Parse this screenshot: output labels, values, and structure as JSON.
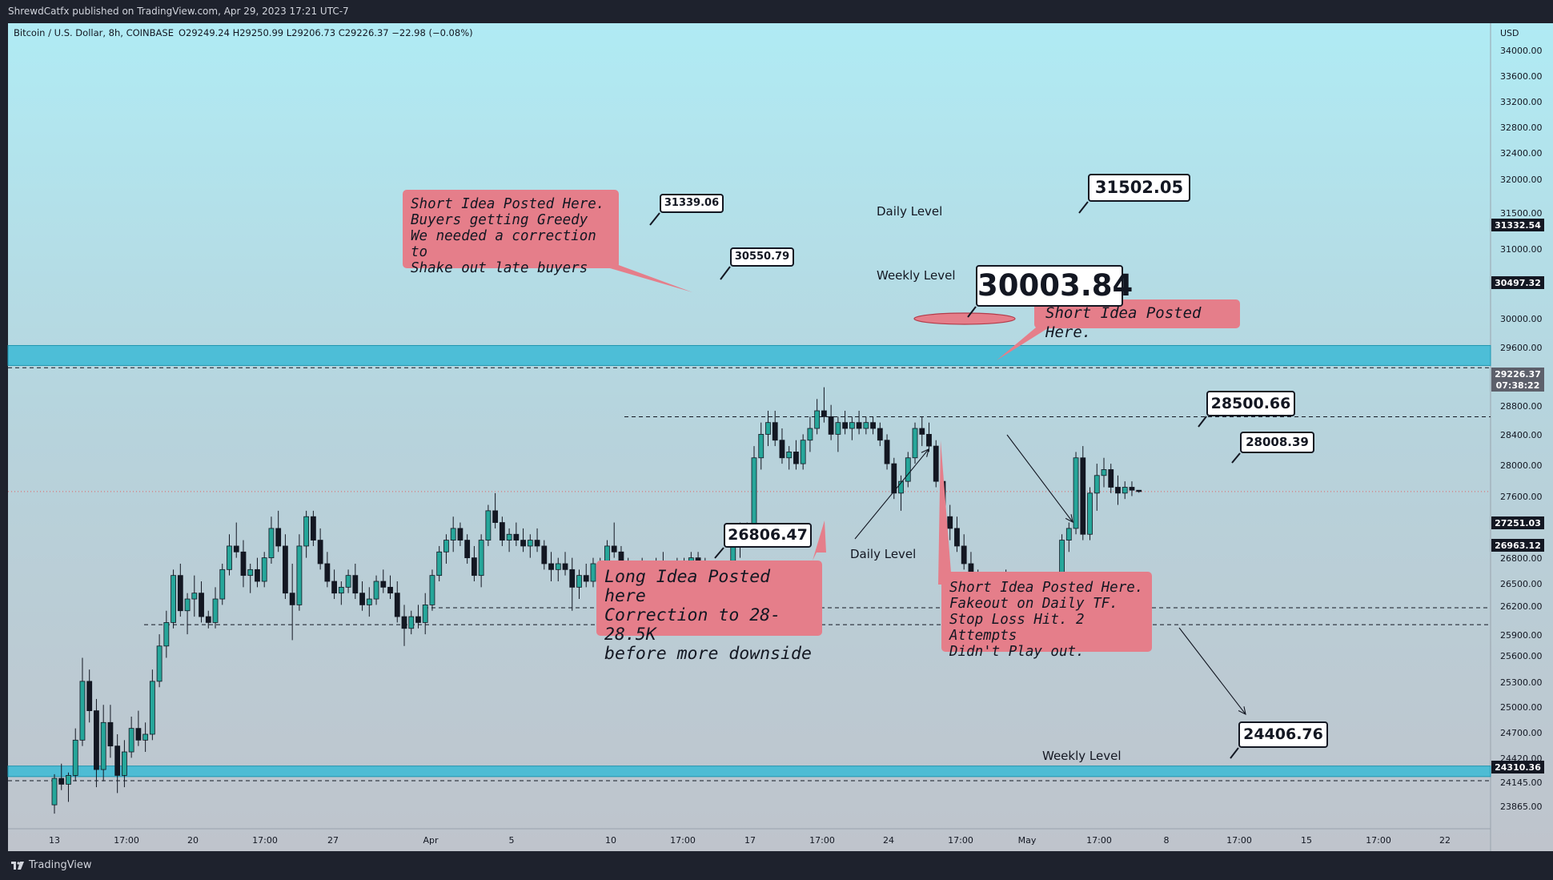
{
  "header": {
    "publish_info": "ShrewdCatfx published on TradingView.com, Apr 29, 2023 17:21 UTC-7"
  },
  "footer": {
    "brand": "TradingView"
  },
  "chart_data": {
    "type": "candlestick",
    "title": "Bitcoin / U.S. Dollar, 8h, COINBASE",
    "ohlc_legend": "O29249.24 H29250.99 L29206.73 C29226.37 −22.98 (−0.08%)",
    "currency": "USD",
    "ylim": [
      23600,
      34350
    ],
    "y_ticks": [
      "34000.00",
      "33600.00",
      "33200.00",
      "32800.00",
      "32400.00",
      "32000.00",
      "31500.00",
      "31000.00",
      "30000.00",
      "29600.00",
      "28800.00",
      "28400.00",
      "28000.00",
      "27600.00",
      "27000.00",
      "26800.00",
      "26500.00",
      "26200.00",
      "25900.00",
      "25600.00",
      "25300.00",
      "25000.00",
      "24700.00",
      "24420.00",
      "24145.00",
      "23865.00"
    ],
    "x_ticks": [
      "13",
      "17:00",
      "20",
      "17:00",
      "27",
      "Apr",
      "5",
      "10",
      "17:00",
      "17",
      "17:00",
      "24",
      "17:00",
      "May",
      "17:00",
      "8",
      "17:00",
      "15",
      "17:00",
      "22"
    ],
    "price_tags": [
      {
        "value": "31332.54",
        "style": "dark"
      },
      {
        "value": "30497.32",
        "style": "dark"
      },
      {
        "value": "29226.37",
        "style": "current"
      },
      {
        "value": "07:38:22",
        "style": "current-sub"
      },
      {
        "value": "27251.03",
        "style": "dark"
      },
      {
        "value": "26963.12",
        "style": "dark"
      },
      {
        "value": "24310.36",
        "style": "dark"
      }
    ],
    "zones": [
      {
        "label": "Daily Level",
        "from": 31370,
        "to": 31710
      },
      {
        "label": "Weekly Level",
        "from": 24380,
        "to": 24560
      }
    ],
    "levels": [
      {
        "label": "",
        "value": 31332.54
      },
      {
        "label": "Weekly Level",
        "value": 30497.32
      },
      {
        "label": "",
        "value": 27251.03
      },
      {
        "label": "Daily Level",
        "value": 26963.12
      },
      {
        "label": "",
        "value": 24310.36
      }
    ],
    "current_price": 29226.37,
    "callouts": [
      {
        "text": "31339.06"
      },
      {
        "text": "30550.79"
      },
      {
        "text": "31502.05"
      },
      {
        "text": "30003.84"
      },
      {
        "text": "28500.66"
      },
      {
        "text": "28008.39"
      },
      {
        "text": "26806.47"
      },
      {
        "text": "24406.76"
      }
    ],
    "notes": [
      {
        "text": "Short Idea Posted Here.\nBuyers getting Greedy\nWe needed a correction to\nShake out late buyers"
      },
      {
        "text": "Short Idea Posted Here."
      },
      {
        "text": "Long Idea Posted here\nCorrection to 28-28.5K\nbefore more downside"
      },
      {
        "text": "Short Idea Posted Here.\nFakeout on Daily TF.\nStop Loss Hit. 2 Attempts\nDidn't Play out."
      }
    ],
    "candles": [
      [
        23900,
        24420,
        23750,
        24350
      ],
      [
        24350,
        24600,
        24150,
        24250
      ],
      [
        24250,
        24450,
        23950,
        24400
      ],
      [
        24400,
        25200,
        24300,
        25000
      ],
      [
        25000,
        26400,
        24900,
        26000
      ],
      [
        26000,
        26200,
        25300,
        25500
      ],
      [
        25500,
        25700,
        24200,
        24500
      ],
      [
        24500,
        25600,
        24300,
        25300
      ],
      [
        25300,
        25600,
        24700,
        24900
      ],
      [
        24900,
        25100,
        24100,
        24400
      ],
      [
        24400,
        25000,
        24200,
        24800
      ],
      [
        24800,
        25400,
        24700,
        25200
      ],
      [
        25200,
        25500,
        24900,
        25000
      ],
      [
        25000,
        25300,
        24800,
        25100
      ],
      [
        25100,
        26200,
        25000,
        26000
      ],
      [
        26000,
        26800,
        25900,
        26600
      ],
      [
        26600,
        27200,
        26400,
        27000
      ],
      [
        27000,
        27900,
        26900,
        27800
      ],
      [
        27800,
        28000,
        27100,
        27200
      ],
      [
        27200,
        27500,
        26800,
        27400
      ],
      [
        27400,
        27800,
        27100,
        27500
      ],
      [
        27500,
        27700,
        27000,
        27100
      ],
      [
        27100,
        27200,
        26900,
        27000
      ],
      [
        27000,
        27600,
        26900,
        27400
      ],
      [
        27400,
        28000,
        27300,
        27900
      ],
      [
        27900,
        28500,
        27800,
        28300
      ],
      [
        28300,
        28700,
        28100,
        28200
      ],
      [
        28200,
        28400,
        27600,
        27800
      ],
      [
        27800,
        28000,
        27500,
        27900
      ],
      [
        27900,
        28100,
        27600,
        27700
      ],
      [
        27700,
        28200,
        27600,
        28100
      ],
      [
        28100,
        28800,
        28000,
        28600
      ],
      [
        28600,
        28900,
        28200,
        28300
      ],
      [
        28300,
        28500,
        27400,
        27500
      ],
      [
        27500,
        28000,
        26700,
        27300
      ],
      [
        27300,
        28500,
        27200,
        28300
      ],
      [
        28300,
        28900,
        28100,
        28800
      ],
      [
        28800,
        28900,
        28300,
        28400
      ],
      [
        28400,
        28600,
        27900,
        28000
      ],
      [
        28000,
        28200,
        27600,
        27700
      ],
      [
        27700,
        27900,
        27400,
        27500
      ],
      [
        27500,
        27700,
        27300,
        27600
      ],
      [
        27600,
        27900,
        27500,
        27800
      ],
      [
        27800,
        28000,
        27400,
        27500
      ],
      [
        27500,
        27700,
        27200,
        27300
      ],
      [
        27300,
        27600,
        27100,
        27400
      ],
      [
        27400,
        27800,
        27300,
        27700
      ],
      [
        27700,
        27900,
        27500,
        27600
      ],
      [
        27600,
        27800,
        27400,
        27500
      ],
      [
        27500,
        27700,
        27000,
        27100
      ],
      [
        27100,
        27300,
        26600,
        26900
      ],
      [
        26900,
        27200,
        26800,
        27100
      ],
      [
        27100,
        27300,
        26900,
        27000
      ],
      [
        27000,
        27500,
        26800,
        27300
      ],
      [
        27300,
        27900,
        27200,
        27800
      ],
      [
        27800,
        28300,
        27700,
        28200
      ],
      [
        28200,
        28500,
        28000,
        28400
      ],
      [
        28400,
        28800,
        28200,
        28600
      ],
      [
        28600,
        28700,
        28300,
        28400
      ],
      [
        28400,
        28500,
        28000,
        28100
      ],
      [
        28100,
        28300,
        27700,
        27800
      ],
      [
        27800,
        28500,
        27600,
        28400
      ],
      [
        28400,
        29000,
        28300,
        28900
      ],
      [
        28900,
        29200,
        28600,
        28700
      ],
      [
        28700,
        28800,
        28300,
        28400
      ],
      [
        28400,
        28600,
        28200,
        28500
      ],
      [
        28500,
        28700,
        28300,
        28400
      ],
      [
        28400,
        28600,
        28200,
        28300
      ],
      [
        28300,
        28500,
        28100,
        28400
      ],
      [
        28400,
        28600,
        28200,
        28300
      ],
      [
        28300,
        28400,
        27900,
        28000
      ],
      [
        28000,
        28200,
        27700,
        27900
      ],
      [
        27900,
        28100,
        27700,
        28000
      ],
      [
        28000,
        28200,
        27800,
        27900
      ],
      [
        27900,
        28100,
        27200,
        27600
      ],
      [
        27600,
        27900,
        27400,
        27800
      ],
      [
        27800,
        28000,
        27600,
        27700
      ],
      [
        27700,
        28100,
        27600,
        28000
      ],
      [
        28000,
        28100,
        27700,
        27800
      ],
      [
        27800,
        28400,
        27700,
        28300
      ],
      [
        28300,
        28700,
        28100,
        28200
      ],
      [
        28200,
        28300,
        27800,
        27900
      ],
      [
        27900,
        28100,
        27700,
        27800
      ],
      [
        27800,
        28000,
        27600,
        27900
      ],
      [
        27900,
        28100,
        27700,
        27800
      ],
      [
        27800,
        28000,
        27600,
        27700
      ],
      [
        27700,
        28100,
        27600,
        28000
      ],
      [
        28000,
        28200,
        27700,
        27800
      ],
      [
        27800,
        28000,
        27600,
        27900
      ],
      [
        27900,
        28100,
        27700,
        27800
      ],
      [
        27800,
        28100,
        27700,
        28000
      ],
      [
        28000,
        28200,
        27900,
        28100
      ],
      [
        28100,
        28200,
        27900,
        28000
      ],
      [
        28000,
        28100,
        27800,
        27900
      ],
      [
        27900,
        28000,
        27700,
        27800
      ],
      [
        27800,
        28000,
        27700,
        27900
      ],
      [
        27900,
        28000,
        27700,
        27800
      ],
      [
        27800,
        28400,
        27700,
        28300
      ],
      [
        28300,
        28700,
        28100,
        28500
      ],
      [
        28500,
        28700,
        28300,
        28400
      ],
      [
        28400,
        30000,
        28300,
        29800
      ],
      [
        29800,
        30400,
        29600,
        30200
      ],
      [
        30200,
        30600,
        30000,
        30400
      ],
      [
        30400,
        30600,
        30000,
        30100
      ],
      [
        30100,
        30300,
        29700,
        29800
      ],
      [
        29800,
        30000,
        29600,
        29900
      ],
      [
        29900,
        30100,
        29600,
        29700
      ],
      [
        29700,
        30200,
        29600,
        30100
      ],
      [
        30100,
        30500,
        29900,
        30300
      ],
      [
        30300,
        30800,
        30200,
        30600
      ],
      [
        30600,
        31000,
        30400,
        30500
      ],
      [
        30500,
        30700,
        30100,
        30200
      ],
      [
        30200,
        30500,
        29900,
        30400
      ],
      [
        30400,
        30600,
        30200,
        30300
      ],
      [
        30300,
        30500,
        30100,
        30400
      ],
      [
        30400,
        30600,
        30200,
        30300
      ],
      [
        30300,
        30500,
        30200,
        30400
      ],
      [
        30400,
        30500,
        30200,
        30300
      ],
      [
        30300,
        30400,
        30000,
        30100
      ],
      [
        30100,
        30200,
        29600,
        29700
      ],
      [
        29700,
        29800,
        29100,
        29200
      ],
      [
        29200,
        29500,
        28900,
        29400
      ],
      [
        29400,
        29900,
        29300,
        29800
      ],
      [
        29800,
        30400,
        29700,
        30300
      ],
      [
        30300,
        30500,
        30000,
        30200
      ],
      [
        30200,
        30400,
        29900,
        30000
      ],
      [
        30000,
        30100,
        29300,
        29400
      ],
      [
        29400,
        29500,
        28700,
        28800
      ],
      [
        28800,
        29000,
        28400,
        28600
      ],
      [
        28600,
        28800,
        28200,
        28300
      ],
      [
        28300,
        28500,
        27900,
        28000
      ],
      [
        28000,
        28200,
        27700,
        27800
      ],
      [
        27800,
        27900,
        27100,
        27200
      ],
      [
        27200,
        27500,
        27000,
        27300
      ],
      [
        27300,
        27600,
        27100,
        27500
      ],
      [
        27500,
        27800,
        27300,
        27700
      ],
      [
        27700,
        27900,
        27400,
        27500
      ],
      [
        27500,
        27700,
        27300,
        27400
      ],
      [
        27400,
        27600,
        27200,
        27300
      ],
      [
        27300,
        27500,
        27100,
        27400
      ],
      [
        27400,
        27600,
        27200,
        27300
      ],
      [
        27300,
        27500,
        27000,
        27100
      ],
      [
        27100,
        27300,
        26900,
        27200
      ],
      [
        27200,
        27600,
        27100,
        27500
      ],
      [
        27500,
        28500,
        27400,
        28400
      ],
      [
        28400,
        28700,
        28200,
        28600
      ],
      [
        28600,
        29900,
        28500,
        29800
      ],
      [
        29800,
        30000,
        28400,
        28500
      ],
      [
        28500,
        29300,
        28400,
        29200
      ],
      [
        29200,
        29700,
        28900,
        29500
      ],
      [
        29500,
        29800,
        29300,
        29600
      ],
      [
        29600,
        29700,
        29200,
        29300
      ],
      [
        29300,
        29500,
        29000,
        29200
      ],
      [
        29200,
        29400,
        29100,
        29300
      ],
      [
        29300,
        29400,
        29150,
        29250
      ],
      [
        29249.24,
        29250.99,
        29206.73,
        29226.37
      ]
    ]
  }
}
